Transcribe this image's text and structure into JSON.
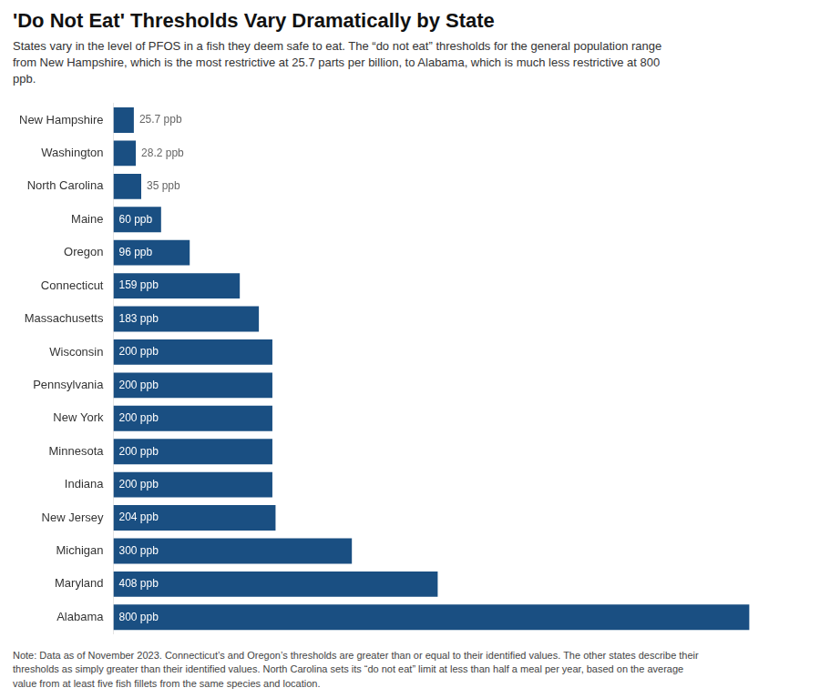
{
  "chart_data": {
    "type": "bar",
    "orientation": "horizontal",
    "title": "'Do Not Eat' Thresholds Vary Dramatically by State",
    "subtitle": "States vary in the level of PFOS in a fish they deem safe to eat. The “do not eat” thresholds for the general population range\nfrom New Hampshire, which is the most restrictive at 25.7 parts per billion, to Alabama, which is much less restrictive at 800\nppb.",
    "annotations": [
      "Note: Data as of November 2023. Connecticut’s and Oregon’s thresholds are greater than or equal to their identified values. The other states describe their\nthresholds as simply greater than their identified values. North Carolina sets its “do not eat” limit at less than half a meal per year, based on the average\nvalue from at least five fish fillets from the same species and location."
    ],
    "categories": [
      "New Hampshire",
      "Washington",
      "North Carolina",
      "Maine",
      "Oregon",
      "Connecticut",
      "Massachusetts",
      "Wisconsin",
      "Pennsylvania",
      "New York",
      "Minnesota",
      "Indiana",
      "New Jersey",
      "Michigan",
      "Maryland",
      "Alabama"
    ],
    "values": [
      25.7,
      28.2,
      35,
      60,
      96,
      159,
      183,
      200,
      200,
      200,
      200,
      200,
      204,
      300,
      408,
      800
    ],
    "value_labels": [
      "25.7 ppb",
      "28.2 ppb",
      "35 ppb",
      "60 ppb",
      "96 ppb",
      "159 ppb",
      "183 ppb",
      "200 ppb",
      "200 ppb",
      "200 ppb",
      "200 ppb",
      "200 ppb",
      "204 ppb",
      "300 ppb",
      "408 ppb",
      "800 ppb"
    ],
    "data_labels": true,
    "color": "#1a4f82",
    "xlim": [
      0,
      850
    ],
    "tick_labels": "y",
    "grid": false
  }
}
